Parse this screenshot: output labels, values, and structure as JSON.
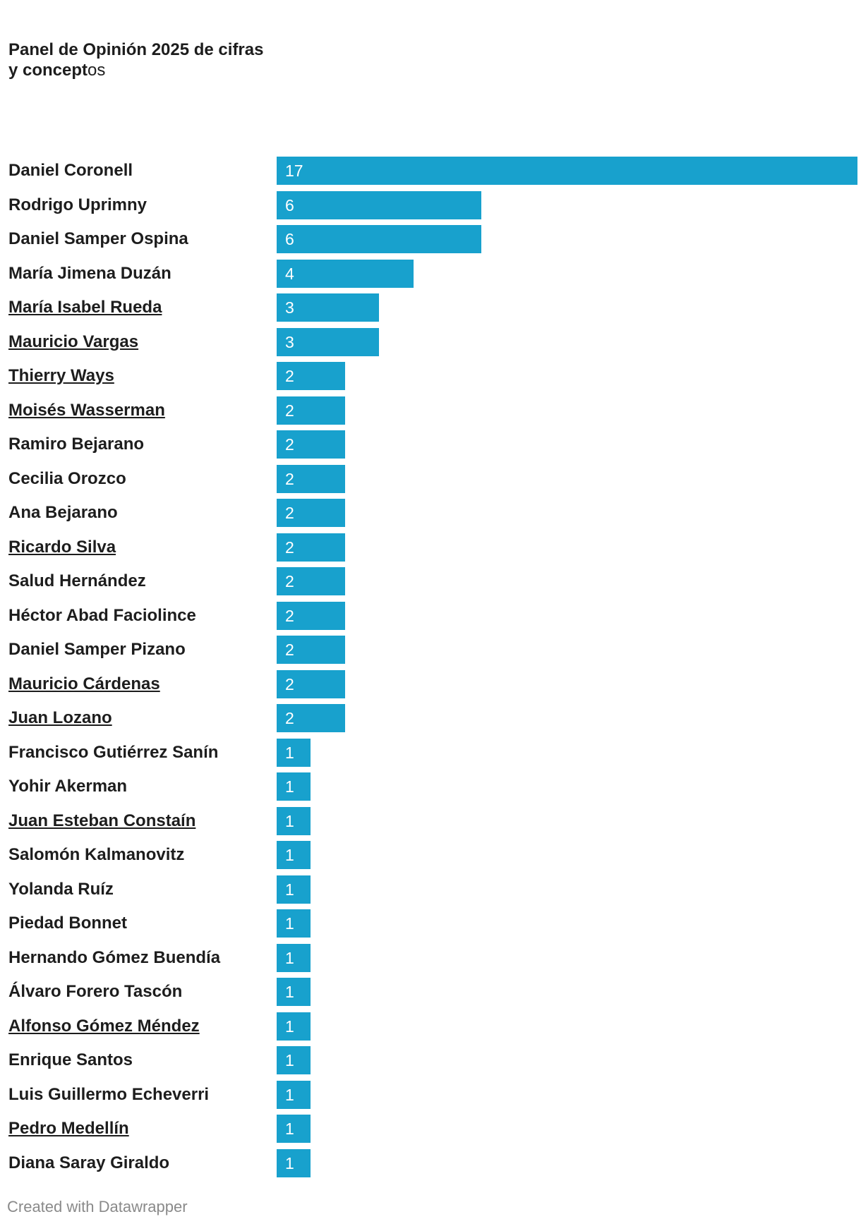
{
  "title": {
    "main": "Panel de Opinión 2025 de cifras y concept",
    "tail": "os"
  },
  "footer": "Created with Datawrapper",
  "colors": {
    "bar": "#18a1cd",
    "text": "#1d1d1d",
    "footer": "#8a8a8a"
  },
  "chart_data": {
    "type": "bar",
    "orientation": "horizontal",
    "title": "Panel de Opinión 2025 de cifras y conceptos",
    "xlim": [
      0,
      17
    ],
    "grid": false,
    "legend": "none",
    "categories": [
      "Daniel Coronell",
      "Rodrigo Uprimny",
      "Daniel Samper Ospina",
      "María Jimena Duzán",
      "María Isabel Rueda",
      "Mauricio Vargas",
      "Thierry Ways",
      "Moisés Wasserman",
      "Ramiro Bejarano",
      "Cecilia Orozco",
      "Ana Bejarano",
      "Ricardo Silva",
      "Salud Hernández",
      "Héctor Abad Faciolince",
      "Daniel Samper Pizano",
      "Mauricio Cárdenas",
      "Juan Lozano",
      "Francisco Gutiérrez Sanín",
      "Yohir Akerman",
      "Juan Esteban Constaín",
      "Salomón Kalmanovitz",
      "Yolanda Ruíz",
      "Piedad Bonnet",
      "Hernando Gómez Buendía",
      "Álvaro Forero Tascón",
      "Alfonso Gómez Méndez",
      "Enrique Santos",
      "Luis Guillermo Echeverri",
      "Pedro Medellín",
      "Diana Saray Giraldo"
    ],
    "values": [
      17,
      6,
      6,
      4,
      3,
      3,
      2,
      2,
      2,
      2,
      2,
      2,
      2,
      2,
      2,
      2,
      2,
      1,
      1,
      1,
      1,
      1,
      1,
      1,
      1,
      1,
      1,
      1,
      1,
      1
    ],
    "linked": [
      false,
      false,
      false,
      false,
      true,
      true,
      true,
      true,
      false,
      false,
      false,
      true,
      false,
      false,
      false,
      true,
      true,
      false,
      false,
      true,
      false,
      false,
      false,
      false,
      false,
      true,
      false,
      false,
      true,
      false
    ]
  }
}
